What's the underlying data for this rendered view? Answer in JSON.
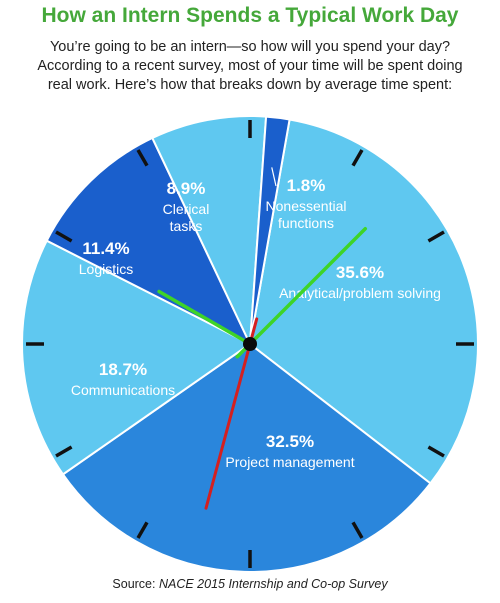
{
  "title": "How an Intern Spends a Typical Work Day",
  "intro": [
    "You’re going to be an intern—so how will you spend your day?",
    "According to a recent survey, most of your time will be spent doing",
    "real work. Here’s how that breaks down by average time spent:"
  ],
  "source": {
    "prefix": "Source: ",
    "name": "NACE 2015 Internship and Co-op Survey"
  },
  "colors": {
    "title": "#45a83a",
    "light": "#5fc8f0",
    "mid": "#2a86dc",
    "dark": "#1a5fcc",
    "hour_hand": "#3ed428",
    "second_hand": "#d42020",
    "ticks": "#111111"
  },
  "chart_data": {
    "type": "pie",
    "title": "How an Intern Spends a Typical Work Day",
    "slices": [
      {
        "label": "Analytical/problem solving",
        "value": 35.6,
        "display": "35.6%",
        "label_lines": [
          "Analytical/problem solving"
        ],
        "color": "#5fc8f0"
      },
      {
        "label": "Project management",
        "value": 32.5,
        "display": "32.5%",
        "label_lines": [
          "Project management"
        ],
        "color": "#2a86dc"
      },
      {
        "label": "Communications",
        "value": 18.7,
        "display": "18.7%",
        "label_lines": [
          "Communications"
        ],
        "color": "#5fc8f0"
      },
      {
        "label": "Logistics",
        "value": 11.4,
        "display": "11.4%",
        "label_lines": [
          "Logistics"
        ],
        "color": "#1a5fcc"
      },
      {
        "label": "Clerical tasks",
        "value": 8.9,
        "display": "8.9%",
        "label_lines": [
          "Clerical",
          "tasks"
        ],
        "color": "#5fc8f0"
      },
      {
        "label": "Nonessential functions",
        "value": 1.8,
        "display": "1.8%",
        "label_lines": [
          "Nonessential",
          "functions"
        ],
        "color": "#1a5fcc"
      }
    ]
  }
}
